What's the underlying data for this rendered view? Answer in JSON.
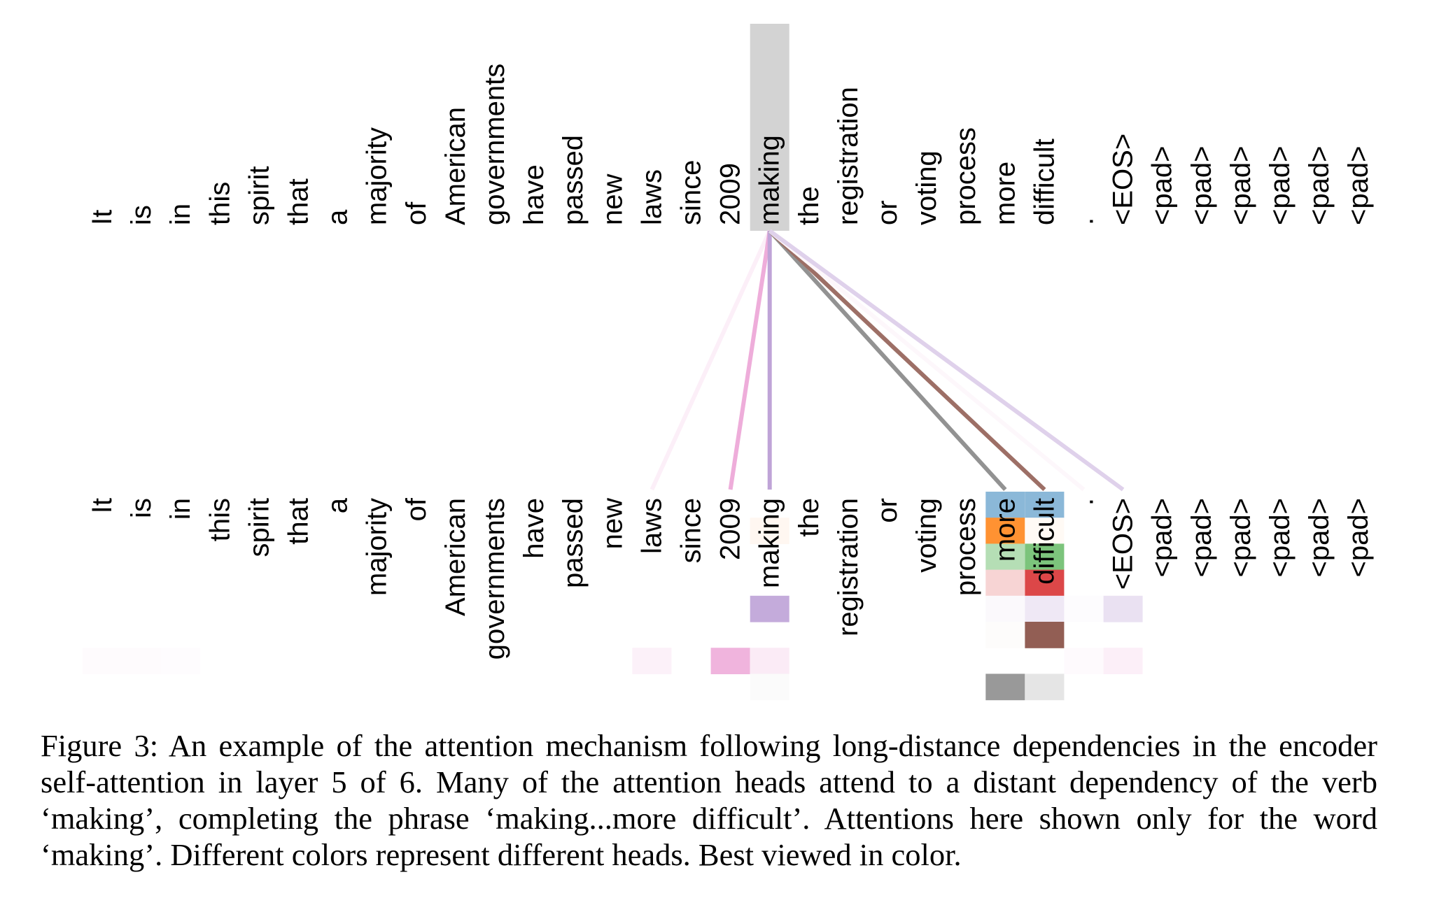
{
  "tokens": [
    "It",
    "is",
    "in",
    "this",
    "spirit",
    "that",
    "a",
    "majority",
    "of",
    "American",
    "governments",
    "have",
    "passed",
    "new",
    "laws",
    "since",
    "2009",
    "making",
    "the",
    "registration",
    "or",
    "voting",
    "process",
    "more",
    "difficult",
    ".",
    "<EOS>",
    "<pad>",
    "<pad>",
    "<pad>",
    "<pad>",
    "<pad>",
    "<pad>"
  ],
  "query_token_index": 17,
  "highlight_color": "#d3d3d3",
  "heads": [
    {
      "color": "#1f77b4"
    },
    {
      "color": "#ff7f0e"
    },
    {
      "color": "#2ca02c"
    },
    {
      "color": "#d62728"
    },
    {
      "color": "#9467bd"
    },
    {
      "color": "#8c564b"
    },
    {
      "color": "#e377c2"
    },
    {
      "color": "#7f7f7f"
    }
  ],
  "attention_cells": [
    {
      "head": 0,
      "token": 23,
      "weight": 0.52
    },
    {
      "head": 0,
      "token": 24,
      "weight": 0.52
    },
    {
      "head": 1,
      "token": 17,
      "weight": 0.06
    },
    {
      "head": 1,
      "token": 23,
      "weight": 0.85
    },
    {
      "head": 1,
      "token": 24,
      "weight": 0.04
    },
    {
      "head": 2,
      "token": 23,
      "weight": 0.35
    },
    {
      "head": 2,
      "token": 24,
      "weight": 0.62
    },
    {
      "head": 3,
      "token": 23,
      "weight": 0.2
    },
    {
      "head": 3,
      "token": 24,
      "weight": 0.85
    },
    {
      "head": 4,
      "token": 17,
      "weight": 0.55
    },
    {
      "head": 4,
      "token": 23,
      "weight": 0.04
    },
    {
      "head": 4,
      "token": 24,
      "weight": 0.15
    },
    {
      "head": 4,
      "token": 25,
      "weight": 0.02
    },
    {
      "head": 4,
      "token": 26,
      "weight": 0.2
    },
    {
      "head": 5,
      "token": 23,
      "weight": 0.02
    },
    {
      "head": 5,
      "token": 24,
      "weight": 0.95
    },
    {
      "head": 6,
      "token": 0,
      "weight": 0.03
    },
    {
      "head": 6,
      "token": 1,
      "weight": 0.03
    },
    {
      "head": 6,
      "token": 2,
      "weight": 0.02
    },
    {
      "head": 6,
      "token": 14,
      "weight": 0.1
    },
    {
      "head": 6,
      "token": 16,
      "weight": 0.55
    },
    {
      "head": 6,
      "token": 17,
      "weight": 0.15
    },
    {
      "head": 6,
      "token": 25,
      "weight": 0.04
    },
    {
      "head": 6,
      "token": 26,
      "weight": 0.12
    },
    {
      "head": 7,
      "token": 17,
      "weight": 0.03
    },
    {
      "head": 7,
      "token": 23,
      "weight": 0.8
    },
    {
      "head": 7,
      "token": 24,
      "weight": 0.2
    }
  ],
  "attention_lines": [
    {
      "head": 6,
      "token": 14,
      "weight": 0.12
    },
    {
      "head": 6,
      "token": 16,
      "weight": 0.6
    },
    {
      "head": 4,
      "token": 17,
      "weight": 0.6
    },
    {
      "head": 7,
      "token": 23,
      "weight": 0.85
    },
    {
      "head": 5,
      "token": 24,
      "weight": 0.85
    },
    {
      "head": 6,
      "token": 25,
      "weight": 0.06
    },
    {
      "head": 4,
      "token": 26,
      "weight": 0.3
    }
  ],
  "caption": "Figure 3: An example of the attention mechanism following long-distance dependencies in the encoder self-attention in layer 5 of 6. Many of the attention heads attend to a distant dependency of the verb ‘making’, completing the phrase ‘making...more difficult’. Attentions here shown only for the word ‘making’. Different colors represent different heads. Best viewed in color."
}
